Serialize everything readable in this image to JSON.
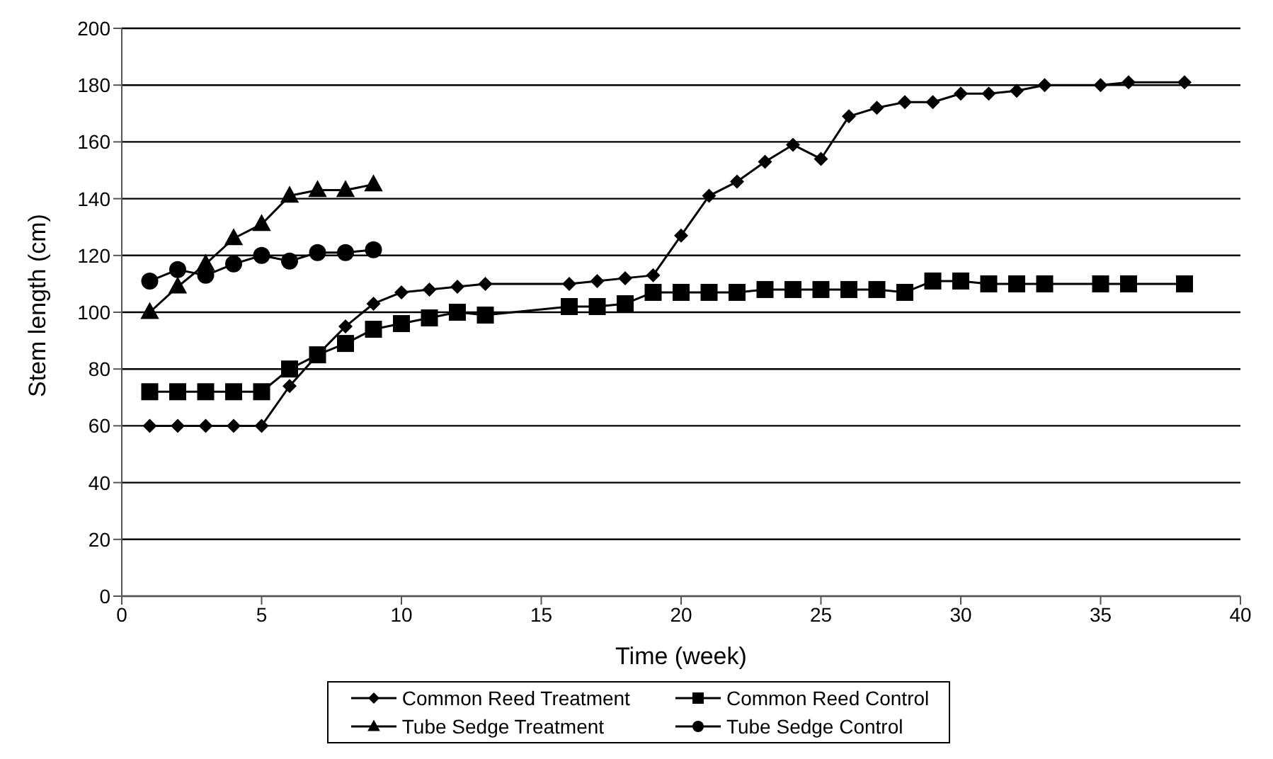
{
  "chart_data": {
    "type": "line",
    "xlabel": "Time (week)",
    "ylabel": "Stem length (cm)",
    "xlim": [
      0,
      40
    ],
    "xticks": [
      0,
      5,
      10,
      15,
      20,
      25,
      30,
      35,
      40
    ],
    "ylim": [
      0,
      200
    ],
    "yticks": [
      0,
      20,
      40,
      60,
      80,
      100,
      120,
      140,
      160,
      180,
      200
    ],
    "grid": "y",
    "legend": "bottom",
    "series": [
      {
        "name": "Common Reed Treatment",
        "color": "#000000",
        "marker": "diamond",
        "x": [
          1,
          2,
          3,
          4,
          5,
          6,
          7,
          8,
          9,
          10,
          11,
          12,
          13,
          16,
          17,
          18,
          19,
          20,
          21,
          22,
          23,
          24,
          25,
          26,
          27,
          28,
          29,
          30,
          31,
          32,
          33,
          35,
          36,
          38
        ],
        "values": [
          60,
          60,
          60,
          60,
          60,
          74,
          85,
          95,
          103,
          107,
          108,
          109,
          110,
          110,
          111,
          112,
          113,
          127,
          141,
          146,
          153,
          159,
          154,
          169,
          172,
          174,
          174,
          177,
          177,
          178,
          180,
          180,
          181,
          181
        ]
      },
      {
        "name": "Common Reed Control",
        "color": "#000000",
        "marker": "square",
        "x": [
          1,
          2,
          3,
          4,
          5,
          6,
          7,
          8,
          9,
          10,
          11,
          12,
          13,
          16,
          17,
          18,
          19,
          20,
          21,
          22,
          23,
          24,
          25,
          26,
          27,
          28,
          29,
          30,
          31,
          32,
          33,
          35,
          36,
          38
        ],
        "values": [
          72,
          72,
          72,
          72,
          72,
          80,
          85,
          89,
          94,
          96,
          98,
          100,
          99,
          102,
          102,
          103,
          107,
          107,
          107,
          107,
          108,
          108,
          108,
          108,
          108,
          107,
          111,
          111,
          110,
          110,
          110,
          110,
          110,
          110
        ]
      },
      {
        "name": "Tube Sedge Treatment",
        "color": "#000000",
        "marker": "triangle",
        "x": [
          1,
          2,
          3,
          4,
          5,
          6,
          7,
          8,
          9
        ],
        "values": [
          100,
          109,
          117,
          126,
          131,
          141,
          143,
          143,
          145
        ]
      },
      {
        "name": "Tube Sedge Control",
        "color": "#000000",
        "marker": "circle",
        "x": [
          1,
          2,
          3,
          4,
          5,
          6,
          7,
          8,
          9
        ],
        "values": [
          111,
          115,
          113,
          117,
          120,
          118,
          121,
          121,
          122
        ]
      }
    ]
  }
}
